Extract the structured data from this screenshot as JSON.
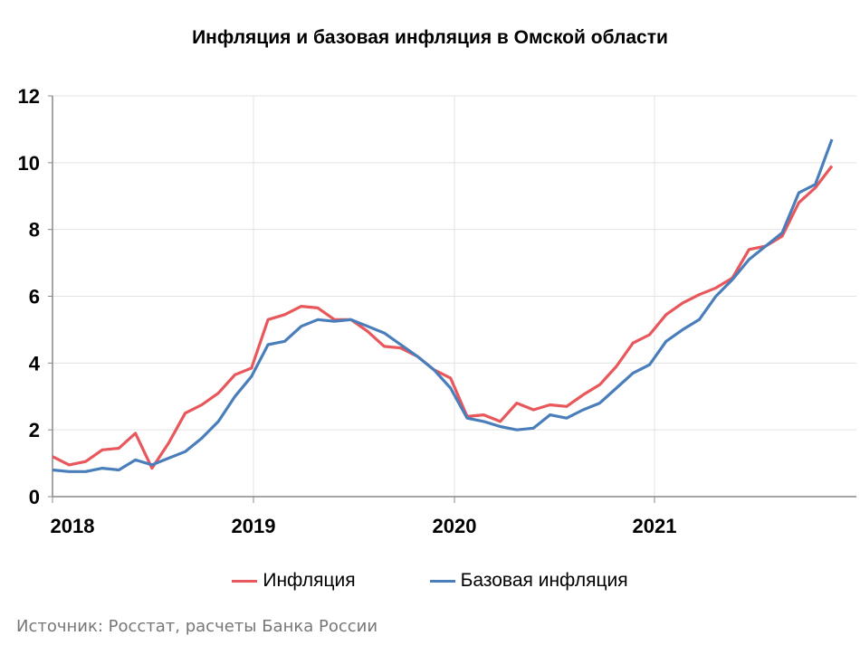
{
  "chart_data": {
    "type": "line",
    "title": "Инфляция и базовая инфляция в Омской области",
    "x": [
      "2017-12",
      "2018-01",
      "2018-02",
      "2018-03",
      "2018-04",
      "2018-05",
      "2018-06",
      "2018-07",
      "2018-08",
      "2018-09",
      "2018-10",
      "2018-11",
      "2018-12",
      "2019-01",
      "2019-02",
      "2019-03",
      "2019-04",
      "2019-05",
      "2019-06",
      "2019-07",
      "2019-08",
      "2019-09",
      "2019-10",
      "2019-11",
      "2019-12",
      "2020-01",
      "2020-02",
      "2020-03",
      "2020-04",
      "2020-05",
      "2020-06",
      "2020-07",
      "2020-08",
      "2020-09",
      "2020-10",
      "2020-11",
      "2020-12",
      "2021-01",
      "2021-02",
      "2021-03",
      "2021-04",
      "2021-05",
      "2021-06",
      "2021-07",
      "2021-08",
      "2021-09",
      "2021-10",
      "2021-11"
    ],
    "xticks": [
      "2018",
      "2019",
      "2020",
      "2021"
    ],
    "ylim": [
      0,
      12
    ],
    "yticks": [
      "0",
      "2",
      "4",
      "6",
      "8",
      "10",
      "12"
    ],
    "grid": true,
    "legend": "bottom",
    "series": [
      {
        "name": "Инфляция",
        "color": "#e8575b",
        "values": [
          1.2,
          0.95,
          1.05,
          1.4,
          1.45,
          1.9,
          0.85,
          1.6,
          2.5,
          2.75,
          3.1,
          3.65,
          3.85,
          5.3,
          5.45,
          5.7,
          5.65,
          5.3,
          5.3,
          4.95,
          4.5,
          4.45,
          4.2,
          3.8,
          3.55,
          2.4,
          2.45,
          2.25,
          2.8,
          2.6,
          2.75,
          2.7,
          3.05,
          3.35,
          3.9,
          4.6,
          4.85,
          5.45,
          5.8,
          6.05,
          6.25,
          6.55,
          7.4,
          7.5,
          7.8,
          8.8,
          9.25,
          9.9
        ]
      },
      {
        "name": "Базовая инфляция",
        "color": "#4a7ebb",
        "values": [
          0.8,
          0.75,
          0.75,
          0.85,
          0.8,
          1.1,
          0.95,
          1.15,
          1.35,
          1.75,
          2.25,
          3.0,
          3.6,
          4.55,
          4.65,
          5.1,
          5.3,
          5.25,
          5.3,
          5.1,
          4.9,
          4.55,
          4.2,
          3.8,
          3.25,
          2.35,
          2.25,
          2.1,
          2.0,
          2.05,
          2.45,
          2.35,
          2.6,
          2.8,
          3.25,
          3.7,
          3.95,
          4.65,
          5.0,
          5.3,
          6.0,
          6.5,
          7.1,
          7.5,
          7.9,
          9.1,
          9.35,
          10.7
        ]
      }
    ]
  },
  "source": "Источник: Росстат, расчеты Банка России"
}
